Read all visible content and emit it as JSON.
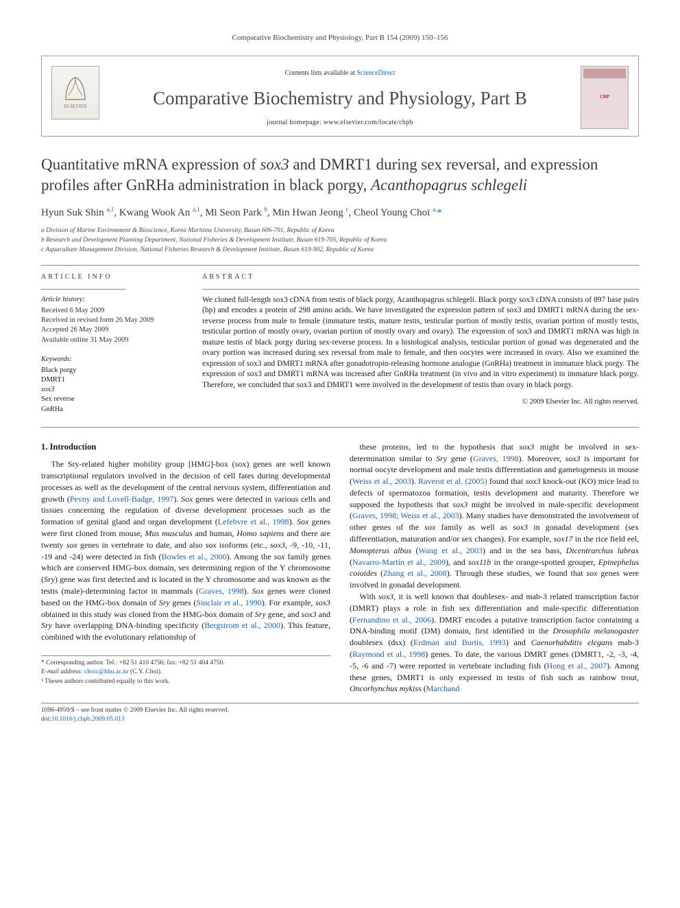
{
  "running_head": "Comparative Biochemistry and Physiology, Part B 154 (2009) 150–156",
  "header": {
    "contents_prefix": "Contents lists available at ",
    "contents_link": "ScienceDirect",
    "journal_name": "Comparative Biochemistry and Physiology, Part B",
    "homepage_label": "journal homepage: ",
    "homepage_url": "www.elsevier.com/locate/cbpb",
    "publisher_logo_label": "ELSEVIER",
    "cover_label": "CBP"
  },
  "title": {
    "line1": "Quantitative mRNA expression of ",
    "gene1": "sox3",
    "mid1": " and DMRT1 during sex reversal, and expression profiles after GnRHa administration in black porgy, ",
    "species": "Acanthopagrus schlegeli"
  },
  "authors_html": "Hyun Suk Shin <sup>a,1</sup>, Kwang Wook An <sup>a,1</sup>, Mi Seon Park <sup>b</sup>, Min Hwan Jeong <sup>c</sup>, Cheol Young Choi <sup>a,</sup><span class=\"star\">*</span>",
  "affiliations": [
    "a Division of Marine Environment & Bioscience, Korea Maritime University, Busan 606-791, Republic of Korea",
    "b Research and Development Planning Department, National Fisheries & Development Institute, Busan 619-705, Republic of Korea",
    "c Aquaculture Management Division, National Fisheries Research & Development Institute, Busan 619-902, Republic of Korea"
  ],
  "article_info": {
    "heading": "ARTICLE INFO",
    "history_head": "Article history:",
    "history": [
      "Received 6 May 2009",
      "Received in revised form 26 May 2009",
      "Accepted 26 May 2009",
      "Available online 31 May 2009"
    ],
    "keywords_head": "Keywords:",
    "keywords": [
      "Black porgy",
      "DMRT1",
      "sox3",
      "Sex reverse",
      "GnRHa"
    ]
  },
  "abstract": {
    "heading": "ABSTRACT",
    "text": "We cloned full-length sox3 cDNA from testis of black porgy, Acanthopagrus schlegeli. Black porgy sox3 cDNA consists of 897 base pairs (bp) and encodes a protein of 298 amino acids. We have investigated the expression pattern of sox3 and DMRT1 mRNA during the sex-reverse process from male to female (immature testis, mature testis, testicular portion of mostly testis, ovarian portion of mostly testis, testicular portion of mostly ovary, ovarian portion of mostly ovary and ovary). The expression of sox3 and DMRT1 mRNA was high in mature testis of black porgy during sex-reverse process. In a histological analysis, testicular portion of gonad was degenerated and the ovary portion was increased during sex reversal from male to female, and then oocytes were increased in ovary. Also we examined the expression of sox3 and DMRT1 mRNA after gonadotropin-releasing hormone analogue (GnRHa) treatment in immature black porgy. The expression of sox3 and DMRT1 mRNA was increased after GnRHa treatment (in vivo and in vitro experiment) in immature black porgy. Therefore, we concluded that sox3 and DMRT1 were involved in the development of testis than ovary in black porgy.",
    "copyright": "© 2009 Elsevier Inc. All rights reserved."
  },
  "body": {
    "section_number": "1.",
    "section_title": "Introduction",
    "left_para": "The Sry-related higher mobility group [HMG]-box (sox) genes are well known transcriptional regulators involved in the decision of cell fates during developmental processes as well as the development of the central nervous system, differentiation and growth (<a class=\"cite\">Pevny and Lovell-Badge, 1997</a>). <span class=\"ital\">Sox</span> genes were detected in various cells and tissues concerning the regulation of diverse development processes such as the formation of genital gland and organ development (<a class=\"cite\">Lefebvre et al., 1998</a>). <span class=\"ital\">Sox</span> genes were first cloned from mouse, <span class=\"ital\">Mus musculus</span> and human, <span class=\"ital\">Homo sapiens</span> and there are twenty <span class=\"ital\">sox</span> genes in vertebrate to date, and also <span class=\"ital\">sox</span> isoforms (etc., <span class=\"ital\">sox3</span>, -9, -10, -11, -19 and -24) were detected in fish (<a class=\"cite\">Bowles et al., 2000</a>). Among the <span class=\"ital\">sox</span> family genes which are conserved HMG-box domain, sex determining region of the Y chromosome (<span class=\"ital\">Sry</span>) gene was first detected and is located in the Y chromosome and was known as the testis (male)-determining factor in mammals (<a class=\"cite\">Graves, 1998</a>). <span class=\"ital\">Sox</span> genes were cloned based on the HMG-box domain of <span class=\"ital\">Sry</span> genes (<a class=\"cite\">Sinclair et al., 1990</a>). For example, <span class=\"ital\">sox3</span> obtained in this study was cloned from the HMG-box domain of <span class=\"ital\">Sry</span> gene, and <span class=\"ital\">sox3</span> and <span class=\"ital\">Sry</span> have overlapping DNA-binding specificity (<a class=\"cite\">Bergstrom et al., 2000</a>). This feature, combined with the evolutionary relationship of",
    "right_para1": "these proteins, led to the hypothesis that <span class=\"ital\">sox3</span> might be involved in sex-determination similar to <span class=\"ital\">Sry</span> gene (<a class=\"cite\">Graves, 1998</a>). Moreover, <span class=\"ital\">sox3</span> is important for normal oocyte development and male testis differentiation and gametogenesis in mouse (<a class=\"cite\">Weiss et al., 2003</a>). <a class=\"cite\">Raverot et al. (2005)</a> found that <span class=\"ital\">sox3</span> knock-out (KO) mice lead to defects of spermatozoa formation, testis development and maturity. Therefore we supposed the hypothesis that <span class=\"ital\">sox3</span> might be involved in male-specific development (<a class=\"cite\">Graves, 1998; Weiss et al., 2003</a>). Many studies have demonstrated the involvement of other genes of the <span class=\"ital\">sox</span> family as well as <span class=\"ital\">sox3</span> in gonadal development (sex differentiation, maturation and/or sex changes). For example, <span class=\"ital\">sox17</span> in the rice field eel, <span class=\"ital\">Monopterus albus</span> (<a class=\"cite\">Wang et al., 2003</a>) and in the sea bass, <span class=\"ital\">Dicentrarchus labrax</span> (<a class=\"cite\">Navarro-Martín et al., 2009</a>), and <span class=\"ital\">sox11b</span> in the orange-spotted grouper, <span class=\"ital\">Epinephelus coioides</span> (<a class=\"cite\">Zhang et al., 2008</a>). Through these studies, we found that <span class=\"ital\">sox</span> genes were involved in gonadal development.",
    "right_para2": "With <span class=\"ital\">sox3</span>, it is well known that doublesex- and mab-3 related transcription factor (DMRT) plays a role in fish sex differentiation and male-specific differentiation (<a class=\"cite\">Fernandino et al., 2006</a>). DMRT encodes a putative transcription factor containing a DNA-binding motif (DM) domain, first identified in the <span class=\"ital\">Drosophila melanogaster</span> doublesex (dsx) (<a class=\"cite\">Erdman and Burtis, 1993</a>) and <span class=\"ital\">Caenorhabditis elegans</span> mab-3 (<a class=\"cite\">Raymond et al., 1998</a>) genes. To date, the various DMRT genes (DMRT1, -2, -3, -4, -5, -6 and -7) were reported in vertebrate including fish (<a class=\"cite\">Hong et al., 2007</a>). Among these genes, DMRT1 is only expressed in testis of fish such as rainbow trout, <span class=\"ital\">Oncorhynchus mykiss</span> (<a class=\"cite\">Marchand</a>"
  },
  "footnotes": {
    "corr": "* Corresponding author. Tel.: +82 51 410 4756; fax: +82 51 404 4750.",
    "email_label": "E-mail address: ",
    "email": "choic@hhu.ac.kr",
    "email_tail": " (C.Y. Choi).",
    "equal": "¹ Theses authors contributed equally to this work."
  },
  "footer": {
    "left": "1096-4959/$ – see front matter © 2009 Elsevier Inc. All rights reserved.",
    "doi_label": "doi:",
    "doi": "10.1016/j.cbpb.2009.05.013"
  },
  "colors": {
    "link": "#1861b3",
    "rule": "#888888",
    "text": "#1a1a1a",
    "muted": "#444444"
  }
}
